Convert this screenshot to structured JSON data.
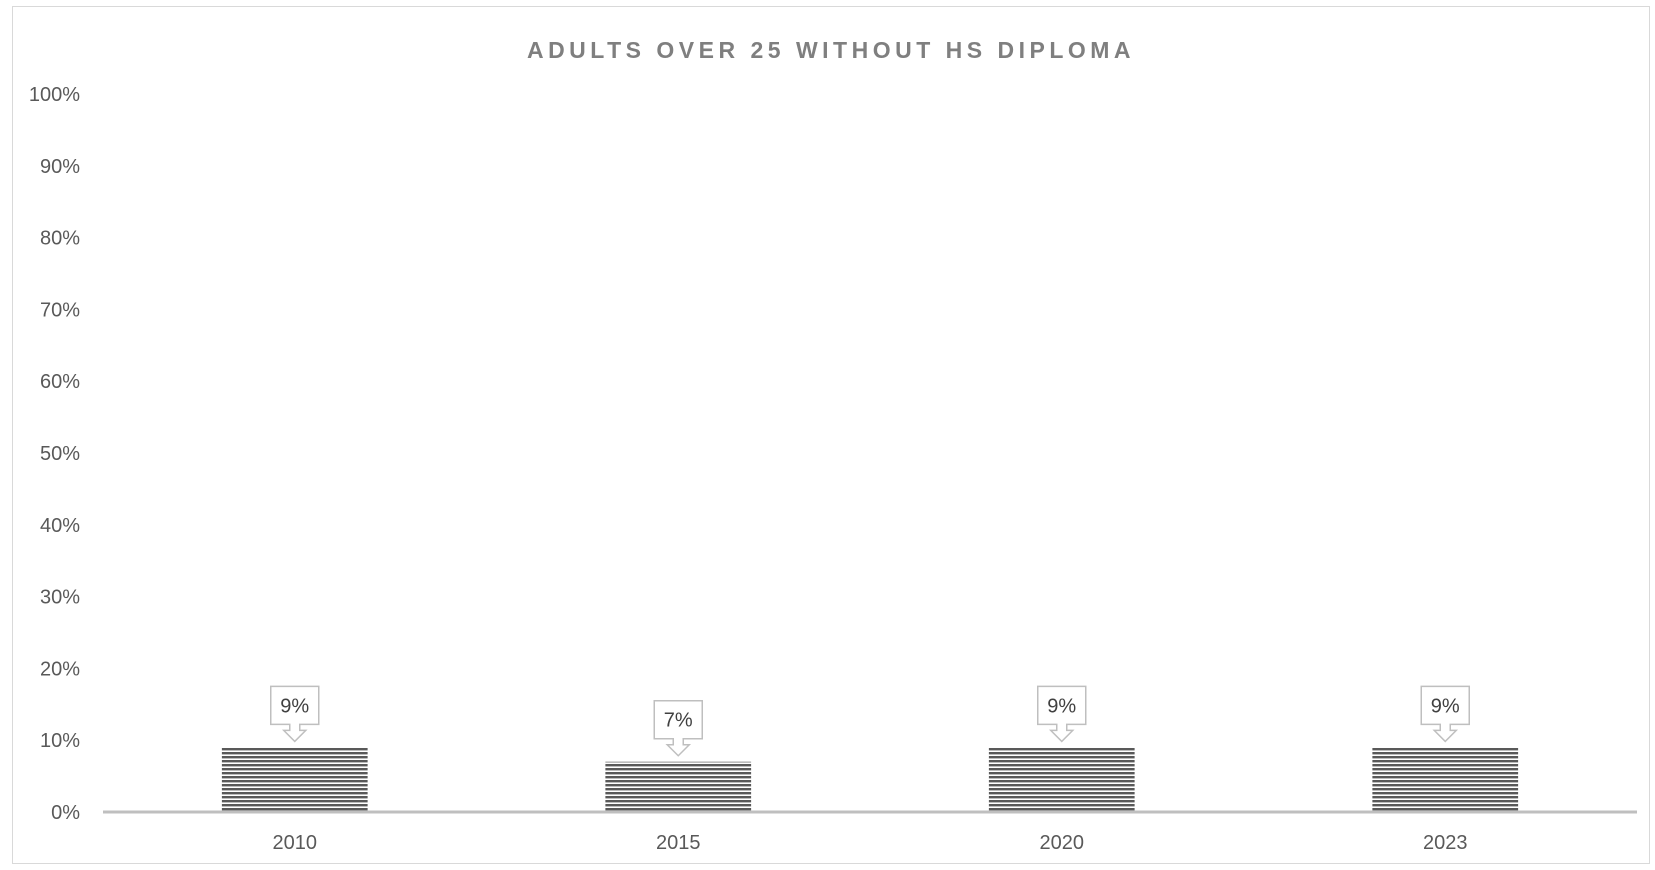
{
  "chart_data": {
    "type": "bar",
    "title": "ADULTS OVER 25 WITHOUT HS DIPLOMA",
    "categories": [
      "2010",
      "2015",
      "2020",
      "2023"
    ],
    "values": [
      0.09,
      0.07,
      0.09,
      0.09
    ],
    "data_labels": [
      "9%",
      "7%",
      "9%",
      "9%"
    ],
    "y_ticks": [
      "0%",
      "10%",
      "20%",
      "30%",
      "40%",
      "50%",
      "60%",
      "70%",
      "80%",
      "90%",
      "100%"
    ],
    "ylim": [
      0,
      1
    ],
    "grid": false,
    "legend": "none",
    "bar_fill": "horizontal-stripes",
    "colors": {
      "bar_dark": "#595959",
      "bar_light": "#ffffff",
      "axis": "#bfbfbf",
      "title": "#7f7f7f",
      "label_box": "#bfbfbf"
    }
  }
}
